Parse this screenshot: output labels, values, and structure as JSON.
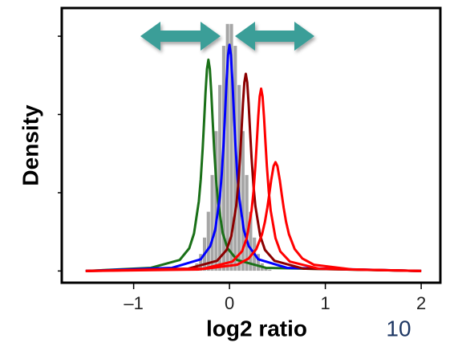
{
  "chart_data": {
    "type": "line",
    "x_label": "log2 ratio",
    "y_label": "Density",
    "page_number": "10",
    "xlim": [
      -1.75,
      2.2
    ],
    "ylim": [
      -0.15,
      3.36
    ],
    "xticks": [
      {
        "value": -1,
        "label": "–1"
      },
      0,
      1,
      2
    ],
    "yticks": [
      0,
      1,
      2,
      3
    ],
    "histogram": {
      "color": "#a6a6a6",
      "bins": [
        -0.44,
        -0.4,
        -0.36,
        -0.32,
        -0.28,
        -0.24,
        -0.2,
        -0.16,
        -0.12,
        -0.08,
        -0.04,
        0,
        0.04,
        0.08,
        0.12,
        0.16,
        0.2,
        0.24,
        0.28,
        0.32,
        0.36,
        0.4,
        0.44
      ],
      "counts": [
        0.02,
        0.05,
        0.1,
        0.22,
        0.43,
        0.76,
        1.23,
        1.79,
        2.38,
        2.88,
        3.16,
        3.16,
        2.88,
        2.38,
        1.79,
        1.23,
        0.76,
        0.43,
        0.22,
        0.1,
        0.05,
        0.02
      ]
    },
    "series": [
      {
        "color": "#1a7018",
        "x": [
          -1.5,
          -0.82,
          -0.52,
          -0.42,
          -0.37,
          -0.32,
          -0.3,
          -0.28,
          -0.265,
          -0.25,
          -0.235,
          -0.22,
          -0.205,
          -0.19,
          -0.175,
          -0.16,
          -0.14,
          -0.12,
          -0.07,
          -0.02,
          0.08,
          0.38,
          2.0
        ],
        "values": [
          0,
          0.04,
          0.14,
          0.29,
          0.48,
          0.89,
          1.17,
          1.56,
          1.91,
          2.28,
          2.58,
          2.7,
          2.58,
          2.28,
          1.91,
          1.56,
          1.17,
          0.89,
          0.48,
          0.29,
          0.14,
          0.04,
          0
        ]
      },
      {
        "color": "#0000ff",
        "x": [
          -1.5,
          -0.6,
          -0.3,
          -0.2,
          -0.15,
          -0.1,
          -0.08,
          -0.06,
          -0.045,
          -0.03,
          -0.015,
          0,
          0.015,
          0.03,
          0.045,
          0.06,
          0.08,
          0.1,
          0.15,
          0.2,
          0.3,
          0.6,
          2.0
        ],
        "values": [
          0,
          0.04,
          0.15,
          0.32,
          0.52,
          0.95,
          1.25,
          1.66,
          2.05,
          2.44,
          2.76,
          2.89,
          2.76,
          2.44,
          2.05,
          1.66,
          1.25,
          0.95,
          0.52,
          0.32,
          0.15,
          0.04,
          0
        ]
      },
      {
        "color": "#8b0000",
        "x": [
          -1.5,
          -0.43,
          -0.13,
          -0.03,
          0.02,
          0.07,
          0.09,
          0.11,
          0.125,
          0.14,
          0.155,
          0.17,
          0.185,
          0.2,
          0.215,
          0.23,
          0.25,
          0.27,
          0.32,
          0.37,
          0.47,
          0.77,
          2.0
        ],
        "values": [
          0,
          0.03,
          0.13,
          0.27,
          0.45,
          0.83,
          1.09,
          1.45,
          1.78,
          2.13,
          2.41,
          2.52,
          2.41,
          2.13,
          1.78,
          1.45,
          1.09,
          0.83,
          0.45,
          0.27,
          0.13,
          0.03,
          0
        ]
      },
      {
        "color": "#ff0000",
        "x": [
          -1.5,
          -0.27,
          0.03,
          0.13,
          0.18,
          0.23,
          0.25,
          0.27,
          0.285,
          0.3,
          0.315,
          0.33,
          0.345,
          0.36,
          0.375,
          0.39,
          0.41,
          0.43,
          0.48,
          0.53,
          0.63,
          0.93,
          2.0
        ],
        "values": [
          0,
          0.03,
          0.12,
          0.25,
          0.42,
          0.77,
          1.01,
          1.34,
          1.65,
          1.97,
          2.23,
          2.33,
          2.23,
          1.97,
          1.65,
          1.34,
          1.01,
          0.77,
          0.42,
          0.25,
          0.12,
          0.03,
          0
        ]
      },
      {
        "color": "#ff0000",
        "x": [
          -1.5,
          -0.32,
          0.08,
          0.2,
          0.28,
          0.34,
          0.37,
          0.395,
          0.415,
          0.435,
          0.46,
          0.48,
          0.5,
          0.525,
          0.545,
          0.565,
          0.59,
          0.62,
          0.68,
          0.76,
          0.88,
          1.28,
          2.0
        ],
        "values": [
          0,
          0.02,
          0.08,
          0.16,
          0.28,
          0.47,
          0.63,
          0.81,
          0.98,
          1.16,
          1.34,
          1.39,
          1.34,
          1.16,
          0.98,
          0.81,
          0.63,
          0.47,
          0.28,
          0.16,
          0.08,
          0.02,
          0
        ]
      }
    ]
  }
}
